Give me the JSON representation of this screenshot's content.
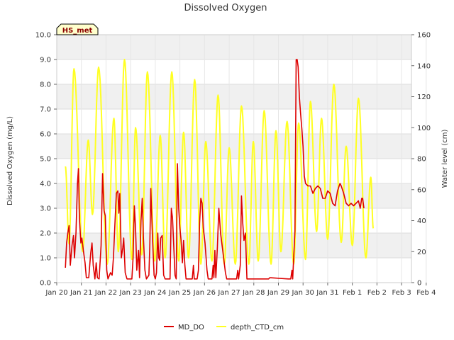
{
  "chart_data": {
    "type": "line",
    "title": "Dissolved Oxygen",
    "badge": "HS_met",
    "ylabel_left": "Dissolved Oxygen (mg/L)",
    "ylabel_right": "Water level (cm)",
    "xlabel": "",
    "x_ticks": [
      "Jan 20",
      "Jan 21",
      "Jan 22",
      "Jan 23",
      "Jan 24",
      "Jan 25",
      "Jan 26",
      "Jan 27",
      "Jan 28",
      "Jan 29",
      "Jan 30",
      "Jan 31",
      "Feb 1",
      "Feb 2",
      "Feb 3",
      "Feb 4"
    ],
    "xlim": [
      0,
      14.4
    ],
    "ylim_left": [
      0,
      10
    ],
    "ylim_right": [
      0,
      160
    ],
    "y_ticks_left": [
      "0.0",
      "1.0",
      "2.0",
      "3.0",
      "4.0",
      "5.0",
      "6.0",
      "7.0",
      "8.0",
      "9.0",
      "10.0"
    ],
    "y_ticks_right": [
      "0",
      "20",
      "40",
      "60",
      "80",
      "100",
      "120",
      "140",
      "160"
    ],
    "grid": true,
    "legend_position": "bottom-center",
    "colors": {
      "MD_DO": "#dd0000",
      "depth_CTD_cm": "#ffff22",
      "band": "#f0f0f0",
      "badge_fill": "#ffffcc"
    },
    "series": [
      {
        "name": "MD_DO",
        "axis": "left",
        "points": [
          [
            0.35,
            0.6
          ],
          [
            0.4,
            1.6
          ],
          [
            0.45,
            2.0
          ],
          [
            0.5,
            2.3
          ],
          [
            0.55,
            0.7
          ],
          [
            0.62,
            1.5
          ],
          [
            0.68,
            1.9
          ],
          [
            0.72,
            1.0
          ],
          [
            0.78,
            2.0
          ],
          [
            0.84,
            4.0
          ],
          [
            0.88,
            4.6
          ],
          [
            0.92,
            2.6
          ],
          [
            0.98,
            1.6
          ],
          [
            1.02,
            1.8
          ],
          [
            1.08,
            1.3
          ],
          [
            1.15,
            0.8
          ],
          [
            1.2,
            0.2
          ],
          [
            1.3,
            0.2
          ],
          [
            1.38,
            1.2
          ],
          [
            1.43,
            1.6
          ],
          [
            1.48,
            0.7
          ],
          [
            1.55,
            0.15
          ],
          [
            1.6,
            0.8
          ],
          [
            1.65,
            0.2
          ],
          [
            1.72,
            0.15
          ],
          [
            1.8,
            1.5
          ],
          [
            1.86,
            4.4
          ],
          [
            1.92,
            2.9
          ],
          [
            1.97,
            2.7
          ],
          [
            2.03,
            0.5
          ],
          [
            2.08,
            0.15
          ],
          [
            2.18,
            0.4
          ],
          [
            2.25,
            0.3
          ],
          [
            2.3,
            1.0
          ],
          [
            2.36,
            2.3
          ],
          [
            2.42,
            3.6
          ],
          [
            2.48,
            3.7
          ],
          [
            2.52,
            2.8
          ],
          [
            2.56,
            3.6
          ],
          [
            2.62,
            1.0
          ],
          [
            2.68,
            1.4
          ],
          [
            2.72,
            1.8
          ],
          [
            2.78,
            0.4
          ],
          [
            2.85,
            0.15
          ],
          [
            3.05,
            0.15
          ],
          [
            3.1,
            1.0
          ],
          [
            3.15,
            3.1
          ],
          [
            3.2,
            2.2
          ],
          [
            3.25,
            0.5
          ],
          [
            3.32,
            1.3
          ],
          [
            3.36,
            0.2
          ],
          [
            3.42,
            2.5
          ],
          [
            3.47,
            3.4
          ],
          [
            3.52,
            1.8
          ],
          [
            3.58,
            0.5
          ],
          [
            3.64,
            0.15
          ],
          [
            3.74,
            0.3
          ],
          [
            3.78,
            1.5
          ],
          [
            3.82,
            3.8
          ],
          [
            3.88,
            2.0
          ],
          [
            3.95,
            0.3
          ],
          [
            4.0,
            0.15
          ],
          [
            4.05,
            0.4
          ],
          [
            4.1,
            2.0
          ],
          [
            4.14,
            1.0
          ],
          [
            4.18,
            0.9
          ],
          [
            4.22,
            1.8
          ],
          [
            4.28,
            1.9
          ],
          [
            4.34,
            0.3
          ],
          [
            4.4,
            0.15
          ],
          [
            4.6,
            0.15
          ],
          [
            4.65,
            3.0
          ],
          [
            4.7,
            2.6
          ],
          [
            4.75,
            1.5
          ],
          [
            4.8,
            0.3
          ],
          [
            4.85,
            0.15
          ],
          [
            4.9,
            4.8
          ],
          [
            4.95,
            3.0
          ],
          [
            5.0,
            2.2
          ],
          [
            5.05,
            1.7
          ],
          [
            5.1,
            0.8
          ],
          [
            5.15,
            1.7
          ],
          [
            5.2,
            0.7
          ],
          [
            5.25,
            0.15
          ],
          [
            5.5,
            0.15
          ],
          [
            5.55,
            0.7
          ],
          [
            5.58,
            0.15
          ],
          [
            5.7,
            0.15
          ],
          [
            5.75,
            0.5
          ],
          [
            5.8,
            2.4
          ],
          [
            5.85,
            3.4
          ],
          [
            5.9,
            3.2
          ],
          [
            5.95,
            2.2
          ],
          [
            6.02,
            1.6
          ],
          [
            6.1,
            0.5
          ],
          [
            6.15,
            0.15
          ],
          [
            6.3,
            0.15
          ],
          [
            6.35,
            0.7
          ],
          [
            6.38,
            0.2
          ],
          [
            6.42,
            1.3
          ],
          [
            6.46,
            0.2
          ],
          [
            6.52,
            1.4
          ],
          [
            6.58,
            3.0
          ],
          [
            6.65,
            2.0
          ],
          [
            6.75,
            1.2
          ],
          [
            6.85,
            0.4
          ],
          [
            6.9,
            0.15
          ],
          [
            7.3,
            0.15
          ],
          [
            7.35,
            0.5
          ],
          [
            7.38,
            0.15
          ],
          [
            7.45,
            0.7
          ],
          [
            7.5,
            3.5
          ],
          [
            7.55,
            2.4
          ],
          [
            7.6,
            1.7
          ],
          [
            7.66,
            2.0
          ],
          [
            7.72,
            0.15
          ],
          [
            8.6,
            0.15
          ],
          [
            8.65,
            0.2
          ],
          [
            9.4,
            0.15
          ],
          [
            9.5,
            0.15
          ],
          [
            9.55,
            0.5
          ],
          [
            9.58,
            0.15
          ],
          [
            9.62,
            1.0
          ],
          [
            9.67,
            2.1
          ],
          [
            9.72,
            9.0
          ],
          [
            9.76,
            9.0
          ],
          [
            9.8,
            8.7
          ],
          [
            9.85,
            7.5
          ],
          [
            9.9,
            6.8
          ],
          [
            9.95,
            6.2
          ],
          [
            10.0,
            5.5
          ],
          [
            10.05,
            4.3
          ],
          [
            10.1,
            4.0
          ],
          [
            10.2,
            3.9
          ],
          [
            10.3,
            3.9
          ],
          [
            10.4,
            3.6
          ],
          [
            10.5,
            3.8
          ],
          [
            10.6,
            3.9
          ],
          [
            10.7,
            3.8
          ],
          [
            10.8,
            3.4
          ],
          [
            10.9,
            3.4
          ],
          [
            11.0,
            3.7
          ],
          [
            11.1,
            3.6
          ],
          [
            11.2,
            3.2
          ],
          [
            11.3,
            3.1
          ],
          [
            11.4,
            3.7
          ],
          [
            11.5,
            4.0
          ],
          [
            11.55,
            3.9
          ],
          [
            11.65,
            3.6
          ],
          [
            11.75,
            3.2
          ],
          [
            11.85,
            3.1
          ],
          [
            11.95,
            3.2
          ],
          [
            12.05,
            3.1
          ],
          [
            12.15,
            3.2
          ],
          [
            12.25,
            3.3
          ],
          [
            12.32,
            3.0
          ],
          [
            12.38,
            3.4
          ],
          [
            12.42,
            3.4
          ],
          [
            12.47,
            3.0
          ]
        ]
      },
      {
        "name": "depth_CTD_cm",
        "axis": "right",
        "peaks": [
          [
            0.35,
            75
          ],
          [
            0.5,
            25
          ],
          [
            0.7,
            138
          ],
          [
            1.05,
            20
          ],
          [
            1.28,
            92
          ],
          [
            1.45,
            44
          ],
          [
            1.7,
            139
          ],
          [
            2.05,
            12
          ],
          [
            2.32,
            106
          ],
          [
            2.5,
            20
          ],
          [
            2.75,
            144
          ],
          [
            3.05,
            15
          ],
          [
            3.2,
            100
          ],
          [
            3.45,
            18
          ],
          [
            3.68,
            136
          ],
          [
            3.98,
            14
          ],
          [
            4.2,
            95
          ],
          [
            4.4,
            16
          ],
          [
            4.67,
            136
          ],
          [
            4.95,
            14
          ],
          [
            5.15,
            97
          ],
          [
            5.35,
            16
          ],
          [
            5.6,
            131
          ],
          [
            5.85,
            12
          ],
          [
            6.05,
            91
          ],
          [
            6.3,
            14
          ],
          [
            6.55,
            121
          ],
          [
            6.8,
            12
          ],
          [
            7.0,
            87
          ],
          [
            7.25,
            12
          ],
          [
            7.5,
            114
          ],
          [
            7.8,
            12
          ],
          [
            7.98,
            91
          ],
          [
            8.18,
            14
          ],
          [
            8.42,
            111
          ],
          [
            8.7,
            12
          ],
          [
            8.9,
            98
          ],
          [
            9.1,
            20
          ],
          [
            9.35,
            104
          ],
          [
            9.62,
            12
          ],
          [
            9.82,
            103
          ],
          [
            10.1,
            15
          ],
          [
            10.3,
            117
          ],
          [
            10.55,
            33
          ],
          [
            10.75,
            106
          ],
          [
            11.0,
            28
          ],
          [
            11.25,
            128
          ],
          [
            11.55,
            26
          ],
          [
            11.75,
            88
          ],
          [
            12.0,
            24
          ],
          [
            12.25,
            119
          ],
          [
            12.55,
            16
          ],
          [
            12.75,
            68
          ],
          [
            12.85,
            35
          ]
        ]
      }
    ]
  },
  "legend": {
    "items": [
      {
        "label": "MD_DO"
      },
      {
        "label": "depth_CTD_cm"
      }
    ]
  }
}
